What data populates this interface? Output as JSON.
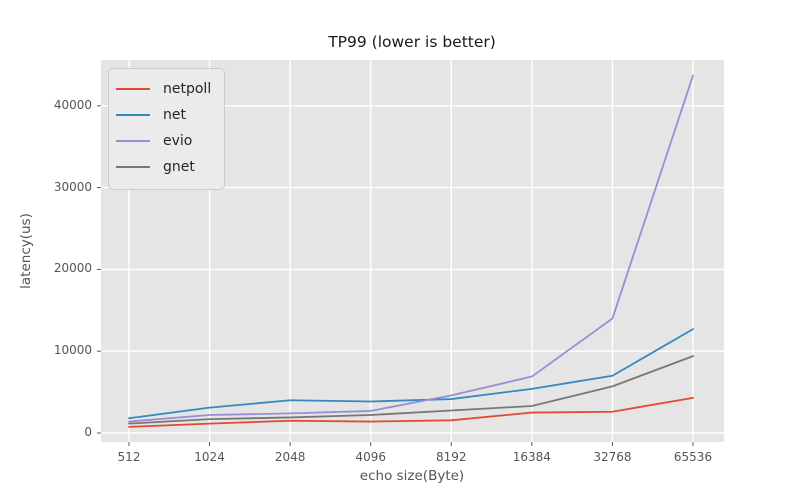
{
  "chart_data": {
    "type": "line",
    "title": "TP99 (lower is better)",
    "xlabel": "echo size(Byte)",
    "ylabel": "latency(us)",
    "categories": [
      "512",
      "1024",
      "2048",
      "4096",
      "8192",
      "16384",
      "32768",
      "65536"
    ],
    "yticks": [
      0,
      10000,
      20000,
      30000,
      40000
    ],
    "ylim": [
      -1100,
      45600
    ],
    "grid": true,
    "legend_position": "upper-left",
    "series": [
      {
        "name": "netpoll",
        "color": "#E24A33",
        "values": [
          750,
          1150,
          1500,
          1400,
          1550,
          2500,
          2600,
          4300
        ]
      },
      {
        "name": "net",
        "color": "#348ABD",
        "values": [
          1800,
          3100,
          4000,
          3850,
          4150,
          5400,
          7000,
          12700
        ]
      },
      {
        "name": "evio",
        "color": "#988ED5",
        "values": [
          1400,
          2200,
          2400,
          2700,
          4600,
          6900,
          14000,
          43700
        ]
      },
      {
        "name": "gnet",
        "color": "#777777",
        "values": [
          1150,
          1700,
          1900,
          2200,
          2750,
          3300,
          5700,
          9400
        ]
      }
    ],
    "colors": {
      "figure_bg": "#FFFFFF",
      "plot_bg": "#E5E5E5",
      "grid": "#FFFFFF",
      "tick": "#555555",
      "tick_label": "#555555",
      "axis_label": "#555555",
      "title": "#1A1A1A",
      "legend_bg": "#EBEBEB",
      "legend_border": "#CCCCCC",
      "legend_text": "#262626"
    }
  }
}
